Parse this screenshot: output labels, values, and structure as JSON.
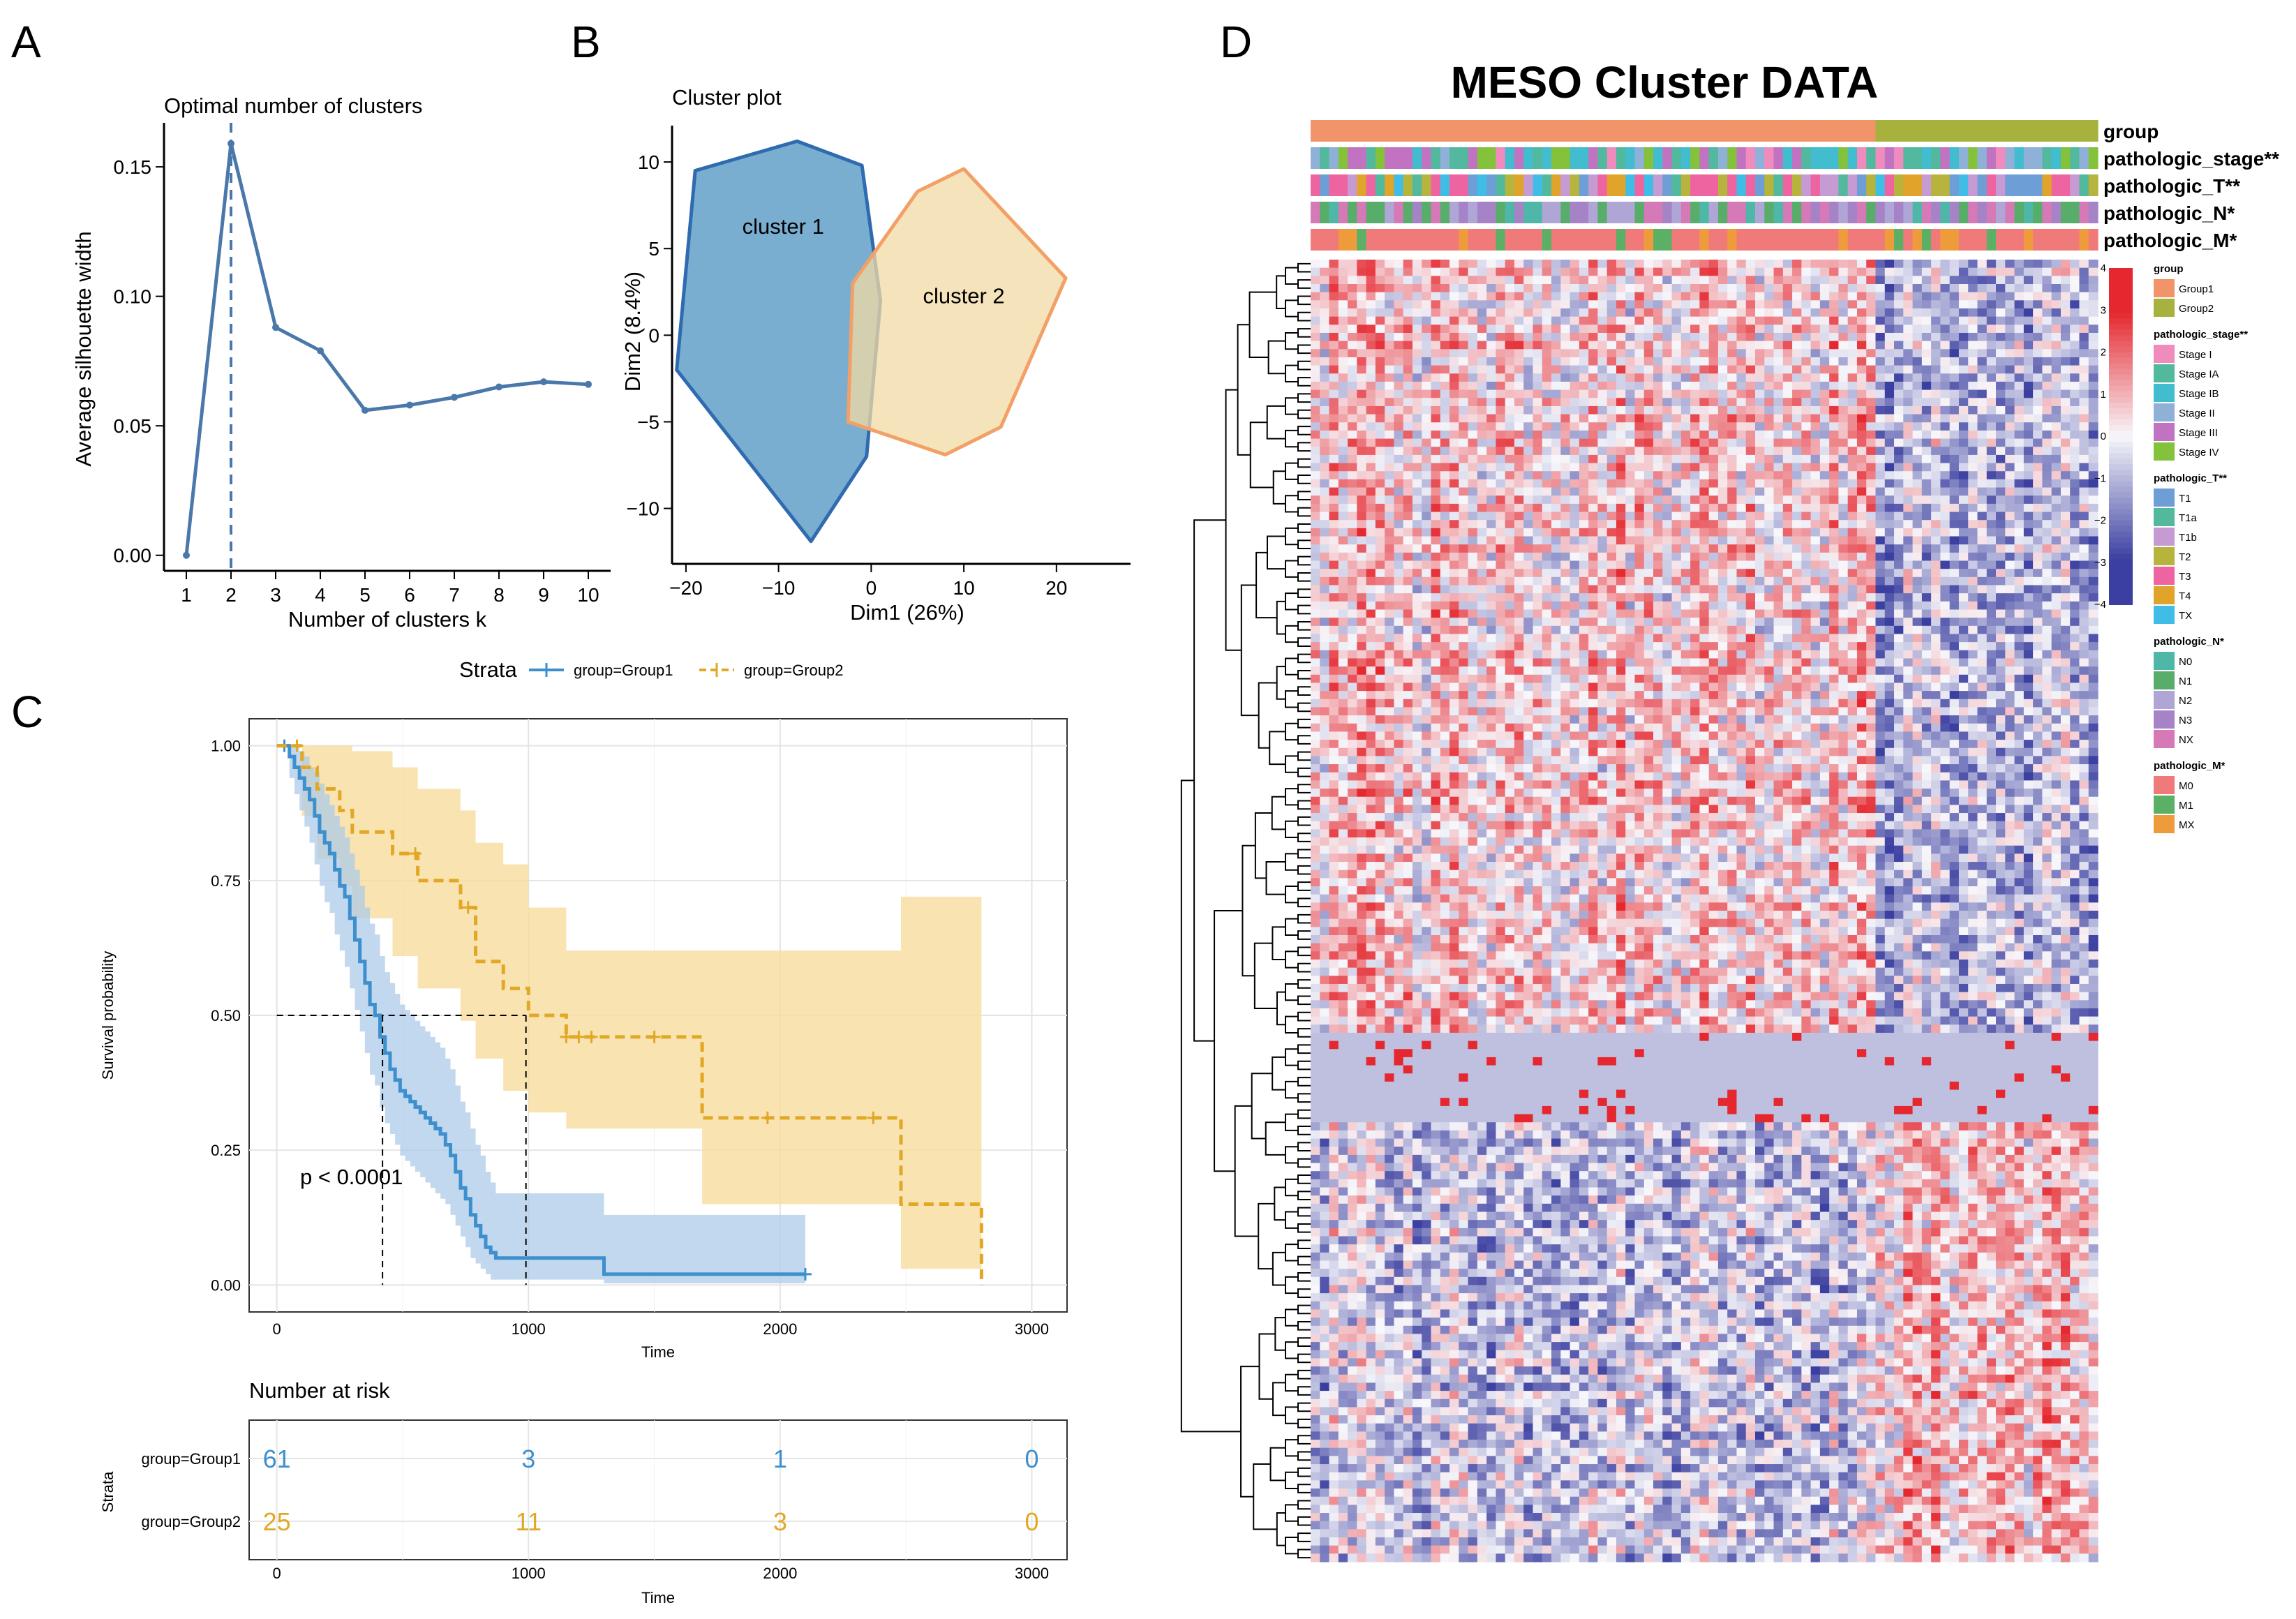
{
  "panels": {
    "A": "A",
    "B": "B",
    "C": "C",
    "D": "D"
  },
  "colors": {
    "silhouette": "#4a78aa",
    "cluster1_fill": "#4d93c0",
    "cluster1_stroke": "#2f6bb0",
    "cluster2_fill": "#f2d9a4",
    "cluster2_stroke": "#f3a067",
    "group1": "#3d8fcd",
    "group2": "#e2a825",
    "group1_band": "#aecbe8",
    "group2_band": "#f6dc9e",
    "heat_low": "#3b3fa0",
    "heat_mid": "#f7f7fb",
    "heat_high": "#e5282f"
  },
  "chart_data": [
    {
      "type": "line",
      "panel": "A",
      "title": "Optimal number of clusters",
      "xlabel": "Number of clusters k",
      "ylabel": "Average silhouette width",
      "x": [
        1,
        2,
        3,
        4,
        5,
        6,
        7,
        8,
        9,
        10
      ],
      "y": [
        0.0,
        0.159,
        0.088,
        0.079,
        0.056,
        0.058,
        0.061,
        0.065,
        0.067,
        0.066
      ],
      "optimal_k": 2,
      "xlim": [
        0.5,
        10.5
      ],
      "ylim": [
        -0.006,
        0.167
      ],
      "xticks": [
        1,
        2,
        3,
        4,
        5,
        6,
        7,
        8,
        9,
        10
      ],
      "xtick_labels": [
        "1",
        "2",
        "3",
        "4",
        "5",
        "6",
        "7",
        "8",
        "9",
        "10"
      ],
      "yticks": [
        0.0,
        0.05,
        0.1,
        0.15
      ],
      "ytick_labels": [
        "0.00",
        "0.05",
        "0.10",
        "0.15"
      ]
    },
    {
      "type": "scatter",
      "panel": "B",
      "title": "Cluster plot",
      "xlabel": "Dim1 (26%)",
      "ylabel": "Dim2 (8.4%)",
      "xlim": [
        -21.5,
        28
      ],
      "ylim": [
        -13.2,
        12.1
      ],
      "xticks": [
        -20,
        -10,
        0,
        10,
        20
      ],
      "xtick_labels": [
        "−20",
        "−10",
        "0",
        "10",
        "20"
      ],
      "yticks": [
        -10,
        -5,
        0,
        5,
        10
      ],
      "ytick_labels": [
        "−10",
        "−5",
        "0",
        "5",
        "10"
      ],
      "clusters": [
        {
          "name": "cluster 1",
          "label_at": [
            -9.5,
            6.3
          ],
          "hull": [
            [
              -19,
              9.5
            ],
            [
              -8,
              11.2
            ],
            [
              -1,
              9.8
            ],
            [
              1,
              2
            ],
            [
              -0.5,
              -7
            ],
            [
              -6.5,
              -11.9
            ],
            [
              -21,
              -2
            ]
          ]
        },
        {
          "name": "cluster 2",
          "label_at": [
            10,
            2.3
          ],
          "hull": [
            [
              5,
              8.3
            ],
            [
              10,
              9.6
            ],
            [
              21,
              3.3
            ],
            [
              14,
              -5.3
            ],
            [
              8,
              -6.9
            ],
            [
              -2.5,
              -5
            ],
            [
              -2,
              3
            ]
          ]
        }
      ]
    },
    {
      "type": "line",
      "panel": "C",
      "subtype": "kaplan-meier",
      "legend_title": "Strata",
      "legend": [
        "group=Group1",
        "group=Group2"
      ],
      "xlabel": "Time",
      "ylabel": "Survival probability",
      "xlim": [
        -110,
        3140
      ],
      "ylim": [
        -0.05,
        1.05
      ],
      "xticks": [
        0,
        1000,
        2000,
        3000
      ],
      "xtick_labels": [
        "0",
        "1000",
        "2000",
        "3000"
      ],
      "yticks": [
        0,
        0.25,
        0.5,
        0.75,
        1.0
      ],
      "ytick_labels": [
        "0.00",
        "0.25",
        "0.50",
        "0.75",
        "1.00"
      ],
      "pvalue": "p < 0.0001",
      "median_lines": {
        "y": 0.5,
        "x": [
          420,
          990
        ]
      },
      "series": [
        {
          "name": "group=Group1",
          "time": [
            0,
            50,
            70,
            90,
            110,
            130,
            150,
            170,
            190,
            210,
            230,
            250,
            270,
            290,
            310,
            330,
            350,
            370,
            390,
            410,
            430,
            450,
            470,
            490,
            510,
            530,
            550,
            570,
            590,
            610,
            630,
            650,
            670,
            690,
            710,
            730,
            750,
            770,
            790,
            810,
            830,
            850,
            870,
            1000,
            1300,
            2100
          ],
          "surv": [
            1.0,
            0.98,
            0.96,
            0.94,
            0.92,
            0.9,
            0.87,
            0.84,
            0.82,
            0.8,
            0.77,
            0.74,
            0.72,
            0.68,
            0.64,
            0.6,
            0.56,
            0.52,
            0.5,
            0.46,
            0.43,
            0.4,
            0.38,
            0.36,
            0.35,
            0.34,
            0.33,
            0.32,
            0.31,
            0.3,
            0.29,
            0.28,
            0.26,
            0.24,
            0.21,
            0.18,
            0.16,
            0.13,
            0.11,
            0.09,
            0.07,
            0.06,
            0.05,
            0.05,
            0.02,
            0.02
          ],
          "upper": [
            1.0,
            1.0,
            1.0,
            0.99,
            0.98,
            0.96,
            0.95,
            0.93,
            0.91,
            0.89,
            0.87,
            0.85,
            0.83,
            0.8,
            0.77,
            0.74,
            0.7,
            0.67,
            0.65,
            0.61,
            0.58,
            0.56,
            0.54,
            0.52,
            0.51,
            0.5,
            0.49,
            0.48,
            0.47,
            0.46,
            0.45,
            0.44,
            0.42,
            0.4,
            0.37,
            0.34,
            0.32,
            0.29,
            0.26,
            0.24,
            0.21,
            0.19,
            0.17,
            0.17,
            0.13,
            0.13
          ],
          "lower": [
            1.0,
            0.94,
            0.91,
            0.88,
            0.85,
            0.82,
            0.78,
            0.74,
            0.71,
            0.69,
            0.65,
            0.62,
            0.59,
            0.55,
            0.51,
            0.47,
            0.43,
            0.39,
            0.37,
            0.33,
            0.3,
            0.28,
            0.26,
            0.24,
            0.23,
            0.22,
            0.21,
            0.2,
            0.19,
            0.18,
            0.17,
            0.16,
            0.15,
            0.13,
            0.11,
            0.09,
            0.07,
            0.05,
            0.04,
            0.03,
            0.02,
            0.01,
            0.01,
            0.01,
            0.003,
            0.003
          ],
          "censor_times": [
            30,
            2100
          ]
        },
        {
          "name": "group=Group2",
          "time": [
            0,
            100,
            160,
            250,
            300,
            460,
            560,
            730,
            790,
            900,
            1000,
            1150,
            1690,
            2480,
            2800
          ],
          "surv": [
            1.0,
            0.96,
            0.92,
            0.88,
            0.84,
            0.8,
            0.75,
            0.7,
            0.6,
            0.55,
            0.5,
            0.46,
            0.31,
            0.15,
            0.0
          ],
          "upper": [
            1.0,
            1.0,
            1.0,
            1.0,
            0.99,
            0.96,
            0.92,
            0.88,
            0.82,
            0.78,
            0.7,
            0.62,
            0.62,
            0.72,
            0.72
          ],
          "lower": [
            1.0,
            0.87,
            0.79,
            0.74,
            0.68,
            0.61,
            0.55,
            0.49,
            0.42,
            0.36,
            0.32,
            0.29,
            0.15,
            0.03,
            0.03
          ],
          "censor_times": [
            80,
            550,
            760,
            1150,
            1200,
            1250,
            1500,
            1950,
            2370
          ]
        }
      ],
      "risk_table": {
        "title": "Number at risk",
        "ylabel": "Strata",
        "xlabel": "Time",
        "times": [
          0,
          1000,
          2000,
          3000
        ],
        "rows": [
          {
            "name": "group=Group1",
            "counts": [
              61,
              3,
              1,
              0
            ]
          },
          {
            "name": "group=Group2",
            "counts": [
              25,
              11,
              3,
              0
            ]
          }
        ]
      }
    },
    {
      "type": "heatmap",
      "panel": "D",
      "title": "MESO Cluster DATA",
      "n_samples": 85,
      "n_genes": 160,
      "group_split_sample": 61,
      "color_scale": {
        "min": -4,
        "max": 4,
        "ticks": [
          4,
          3,
          2,
          1,
          0,
          -1,
          -2,
          -3,
          -4
        ],
        "tick_labels": [
          "4",
          "3",
          "2",
          "1",
          "0",
          "−1",
          "−2",
          "−3",
          "−4"
        ]
      },
      "annotation_rows": [
        {
          "name": "group",
          "label": "group"
        },
        {
          "name": "stage",
          "label": "pathologic_stage**"
        },
        {
          "name": "t",
          "label": "pathologic_T**"
        },
        {
          "name": "n",
          "label": "pathologic_N*"
        },
        {
          "name": "m",
          "label": "pathologic_M*"
        }
      ],
      "legends": [
        {
          "title": "group",
          "items": [
            {
              "label": "Group1",
              "color": "#f29469"
            },
            {
              "label": "Group2",
              "color": "#a6b23d"
            }
          ]
        },
        {
          "title": "pathologic_stage**",
          "items": [
            {
              "label": "Stage I",
              "color": "#f08bbe"
            },
            {
              "label": "Stage IA",
              "color": "#52b89e"
            },
            {
              "label": "Stage IB",
              "color": "#42bccf"
            },
            {
              "label": "Stage II",
              "color": "#8fb1d8"
            },
            {
              "label": "Stage III",
              "color": "#c173c2"
            },
            {
              "label": "Stage IV",
              "color": "#84c23c"
            }
          ]
        },
        {
          "title": "pathologic_T**",
          "items": [
            {
              "label": "T1",
              "color": "#6d9fd6"
            },
            {
              "label": "T1a",
              "color": "#52b89e"
            },
            {
              "label": "T1b",
              "color": "#c69ad3"
            },
            {
              "label": "T2",
              "color": "#b6b43d"
            },
            {
              "label": "T3",
              "color": "#ee64a0"
            },
            {
              "label": "T4",
              "color": "#e0a42a"
            },
            {
              "label": "TX",
              "color": "#40bde6"
            }
          ]
        },
        {
          "title": "pathologic_N*",
          "items": [
            {
              "label": "N0",
              "color": "#4eb7a8"
            },
            {
              "label": "N1",
              "color": "#58ad6a"
            },
            {
              "label": "N2",
              "color": "#b0a6d6"
            },
            {
              "label": "N3",
              "color": "#a683c6"
            },
            {
              "label": "NX",
              "color": "#d579b7"
            }
          ]
        },
        {
          "title": "pathologic_M*",
          "items": [
            {
              "label": "M0",
              "color": "#f07a7a"
            },
            {
              "label": "M1",
              "color": "#5bb066"
            },
            {
              "label": "MX",
              "color": "#ee9b3b"
            }
          ]
        }
      ]
    }
  ]
}
